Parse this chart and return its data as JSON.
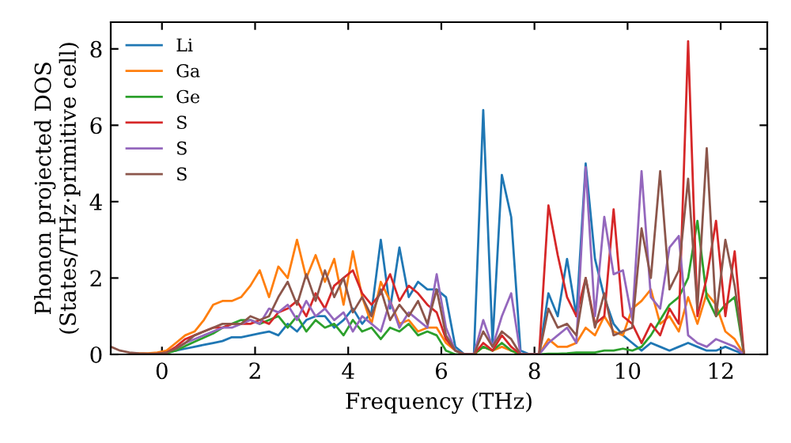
{
  "chart_data": {
    "type": "line",
    "xlabel": "Frequency (THz)",
    "ylabel": "Phonon projected DOS\n(States/THz·primitive cell)",
    "x": [
      -1.1,
      -0.9,
      -0.7,
      -0.5,
      -0.3,
      -0.1,
      0.1,
      0.3,
      0.5,
      0.7,
      0.9,
      1.1,
      1.3,
      1.5,
      1.7,
      1.9,
      2.1,
      2.3,
      2.5,
      2.7,
      2.9,
      3.1,
      3.3,
      3.5,
      3.7,
      3.9,
      4.1,
      4.3,
      4.5,
      4.7,
      4.9,
      5.1,
      5.3,
      5.5,
      5.7,
      5.9,
      6.1,
      6.3,
      6.5,
      6.7,
      6.9,
      7.1,
      7.3,
      7.5,
      7.7,
      7.9,
      8.1,
      8.3,
      8.5,
      8.7,
      8.9,
      9.1,
      9.3,
      9.5,
      9.7,
      9.9,
      10.1,
      10.3,
      10.5,
      10.7,
      10.9,
      11.1,
      11.3,
      11.5,
      11.7,
      11.9,
      12.1,
      12.3,
      12.5
    ],
    "series": [
      {
        "name": "Li",
        "color": "#1f77b4",
        "values": [
          null,
          null,
          null,
          null,
          null,
          0.02,
          0.05,
          0.1,
          0.15,
          0.2,
          0.25,
          0.3,
          0.35,
          0.45,
          0.45,
          0.5,
          0.55,
          0.6,
          0.5,
          0.8,
          0.6,
          0.9,
          1.0,
          1.0,
          0.7,
          0.9,
          1.2,
          0.8,
          1.1,
          3.0,
          1.2,
          2.8,
          1.5,
          1.9,
          1.7,
          1.7,
          1.5,
          0.2,
          0,
          0,
          6.4,
          0.3,
          4.7,
          3.6,
          0.1,
          0,
          0,
          1.6,
          1.0,
          2.5,
          1.0,
          5.0,
          2.5,
          1.5,
          0.8,
          0.5,
          0.3,
          0.1,
          0.3,
          0.2,
          0.1,
          0.2,
          0.3,
          0.2,
          0.1,
          0.1,
          0.2,
          0.1,
          0
        ]
      },
      {
        "name": "Ga",
        "color": "#ff7f0e",
        "values": [
          null,
          null,
          null,
          0.03,
          0.03,
          0.05,
          0.1,
          0.3,
          0.5,
          0.6,
          0.9,
          1.3,
          1.4,
          1.4,
          1.5,
          1.8,
          2.2,
          1.5,
          2.3,
          2.0,
          3.0,
          2.0,
          2.6,
          1.9,
          2.5,
          1.3,
          2.7,
          1.5,
          0.8,
          1.9,
          1.4,
          0.8,
          0.9,
          0.6,
          0.7,
          0.7,
          0.3,
          0.1,
          0,
          0,
          0.2,
          0.1,
          0.2,
          0.1,
          0,
          0,
          0,
          0.4,
          0.2,
          0.2,
          0.3,
          0.7,
          0.5,
          1.0,
          0.6,
          0.5,
          1.2,
          1.4,
          1.7,
          0.8,
          1.0,
          0.6,
          1.5,
          0.8,
          1.6,
          1.3,
          0.6,
          0.4,
          0
        ]
      },
      {
        "name": "Ge",
        "color": "#2ca02c",
        "values": [
          null,
          null,
          null,
          null,
          null,
          null,
          0.03,
          0.1,
          0.22,
          0.33,
          0.44,
          0.55,
          0.7,
          0.8,
          0.9,
          0.9,
          0.8,
          0.9,
          1.0,
          0.7,
          1.0,
          0.6,
          0.9,
          0.7,
          0.8,
          0.5,
          0.9,
          0.6,
          0.7,
          0.4,
          0.7,
          0.6,
          0.8,
          0.5,
          0.6,
          0.5,
          0.1,
          0,
          0,
          0,
          0.2,
          0.1,
          0.3,
          0.1,
          0,
          0,
          0,
          0.02,
          0.02,
          0.03,
          0.05,
          0.05,
          0.05,
          0.1,
          0.1,
          0.15,
          0.1,
          0.2,
          0.5,
          0.9,
          1.3,
          1.5,
          2.0,
          3.5,
          1.5,
          1.0,
          1.3,
          1.5,
          0
        ]
      },
      {
        "name": "S",
        "color": "#d62728",
        "values": [
          null,
          null,
          null,
          null,
          null,
          0.02,
          0.05,
          0.2,
          0.4,
          0.5,
          0.6,
          0.7,
          0.7,
          0.8,
          0.8,
          0.8,
          0.9,
          0.8,
          1.1,
          1.2,
          1.4,
          1.0,
          1.6,
          1.2,
          1.8,
          2.0,
          2.2,
          1.6,
          1.3,
          1.6,
          2.1,
          1.4,
          1.8,
          1.6,
          1.3,
          1.1,
          0.4,
          0.1,
          0,
          0,
          0.3,
          0.1,
          0.5,
          0.2,
          0,
          0,
          0,
          3.9,
          2.6,
          1.5,
          1.0,
          2.0,
          0.8,
          1.0,
          3.8,
          1.0,
          0.8,
          0.3,
          0.8,
          0.5,
          1.2,
          0.8,
          8.2,
          1.0,
          2.0,
          3.5,
          1.0,
          2.7,
          0
        ]
      },
      {
        "name": "S",
        "color": "#9467bd",
        "values": [
          null,
          null,
          null,
          null,
          null,
          null,
          null,
          0.15,
          0.3,
          0.4,
          0.5,
          0.6,
          0.7,
          0.7,
          0.8,
          0.9,
          0.8,
          1.2,
          1.1,
          1.3,
          0.9,
          1.4,
          1.0,
          1.2,
          0.9,
          1.1,
          0.6,
          1.0,
          0.8,
          0.6,
          1.4,
          0.7,
          1.1,
          0.9,
          0.7,
          2.1,
          0.7,
          0.1,
          0,
          0,
          0.9,
          0.2,
          1.0,
          1.6,
          0,
          0,
          0,
          0.3,
          0.5,
          0.7,
          0.3,
          4.9,
          1.0,
          3.6,
          2.1,
          2.2,
          0.9,
          4.8,
          1.5,
          1.2,
          2.8,
          3.1,
          0.5,
          0.3,
          0.2,
          0.4,
          0.3,
          0.2,
          0
        ]
      },
      {
        "name": "S",
        "color": "#8c564b",
        "values": [
          0.2,
          0.1,
          0.05,
          0.03,
          0.02,
          0.02,
          0.05,
          0.15,
          0.3,
          0.5,
          0.6,
          0.7,
          0.8,
          0.8,
          0.8,
          1.0,
          0.9,
          1.0,
          1.5,
          1.9,
          1.3,
          2.1,
          1.4,
          2.2,
          1.5,
          2.0,
          1.1,
          1.5,
          1.0,
          1.7,
          0.9,
          1.3,
          1.0,
          1.4,
          0.8,
          1.7,
          0.5,
          0.1,
          0,
          0,
          0.6,
          0.2,
          0.6,
          0.4,
          0,
          0,
          0,
          1.2,
          0.7,
          0.8,
          0.5,
          2.0,
          0.7,
          1.6,
          0.5,
          0.6,
          0.7,
          3.3,
          2.0,
          4.8,
          1.7,
          2.2,
          4.6,
          1.2,
          5.4,
          1.0,
          3.0,
          1.8,
          0
        ]
      }
    ],
    "xlim": [
      -1.1,
      13
    ],
    "ylim": [
      0,
      8.7
    ],
    "xticks": [
      0,
      2,
      4,
      6,
      8,
      10,
      12
    ],
    "yticks": [
      0,
      2,
      4,
      6,
      8
    ],
    "grid": false,
    "legend": "top left",
    "marker": "none",
    "line_style": "solid"
  }
}
